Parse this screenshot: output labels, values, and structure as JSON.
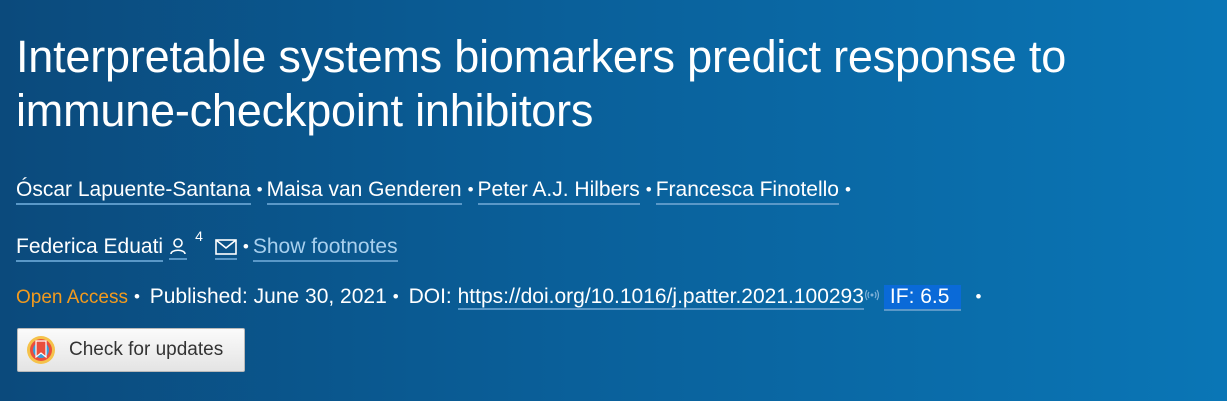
{
  "article": {
    "title": "Interpretable systems biomarkers predict response to immune-checkpoint inhibitors",
    "authors": [
      "Óscar Lapuente-Santana",
      "Maisa van Genderen",
      "Peter A.J. Hilbers",
      "Francesca Finotello",
      "Federica Eduati"
    ],
    "author_separator": "•",
    "affiliation_count": "4",
    "show_footnotes": "Show footnotes",
    "open_access": "Open Access",
    "published": "Published: June 30, 2021",
    "doi_label": "DOI:",
    "doi_url": "https://doi.org/10.1016/j.patter.2021.100293",
    "impact_factor": "IF: 6.5",
    "check_updates": "Check for updates"
  },
  "icons": [
    "person-icon",
    "mail-icon",
    "signal-icon",
    "crossmark-logo"
  ],
  "colors": {
    "background_left": "#0b4a7c",
    "background_right": "#0a76b6",
    "open_access": "#f29a1e",
    "footnotes_link": "#a8d0ee",
    "if_badge": "#0a6ad8"
  }
}
